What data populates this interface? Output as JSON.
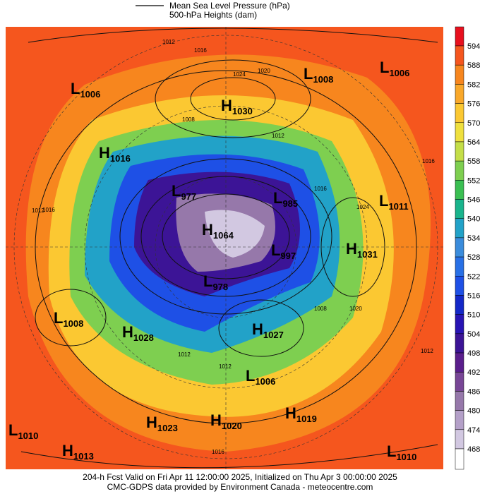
{
  "legend": {
    "items": [
      "Mean Sea Level Pressure (hPa)",
      "500-hPa Heights (dam)"
    ]
  },
  "color_scale": {
    "labels": [
      "594",
      "588",
      "582",
      "576",
      "570",
      "564",
      "558",
      "552",
      "546",
      "540",
      "534",
      "528",
      "522",
      "516",
      "510",
      "504",
      "498",
      "492",
      "486",
      "480",
      "474",
      "468"
    ],
    "colors": [
      "#e8101e",
      "#f5561e",
      "#f7861e",
      "#f9a82a",
      "#fbc832",
      "#efe03e",
      "#c4de48",
      "#7ecf50",
      "#3abf52",
      "#19b48c",
      "#22a2c8",
      "#3a8cdc",
      "#2870e6",
      "#1e50e6",
      "#1428c8",
      "#2814b4",
      "#3c1496",
      "#5a1e8c",
      "#784696",
      "#9678aa",
      "#b4a0c8",
      "#d2c8e1",
      "#ffffff"
    ]
  },
  "map": {
    "pressure_centers": [
      {
        "type": "L",
        "value": "1006"
      },
      {
        "type": "L",
        "value": "1008"
      },
      {
        "type": "L",
        "value": "1006"
      },
      {
        "type": "H",
        "value": "1030"
      },
      {
        "type": "H",
        "value": "1016"
      },
      {
        "type": "L",
        "value": "977"
      },
      {
        "type": "L",
        "value": "985"
      },
      {
        "type": "H",
        "value": "1064"
      },
      {
        "type": "L",
        "value": "997"
      },
      {
        "type": "L",
        "value": "1011"
      },
      {
        "type": "H",
        "value": "1031"
      },
      {
        "type": "L",
        "value": "978"
      },
      {
        "type": "L",
        "value": "1008"
      },
      {
        "type": "H",
        "value": "1028"
      },
      {
        "type": "H",
        "value": "1027"
      },
      {
        "type": "L",
        "value": "1006"
      },
      {
        "type": "H",
        "value": "1023"
      },
      {
        "type": "H",
        "value": "1020"
      },
      {
        "type": "H",
        "value": "1019"
      },
      {
        "type": "L",
        "value": "1010"
      },
      {
        "type": "H",
        "value": "1013"
      },
      {
        "type": "L",
        "value": "1010"
      }
    ],
    "isobar_labels": [
      "1012",
      "1016",
      "1024",
      "1020",
      "1008",
      "1012",
      "1016",
      "1012",
      "1016",
      "1024",
      "1020",
      "1012",
      "1008",
      "1012",
      "1016",
      "1012",
      "1016"
    ]
  },
  "footer": {
    "lines": [
      "204-h Fcst Valid on Fri Apr 11 12:00:00 2025, Initialized on Thu Apr  3 00:00:00 2025",
      "CMC-GDPS data provided by Environment Canada - meteocentre.com"
    ]
  }
}
